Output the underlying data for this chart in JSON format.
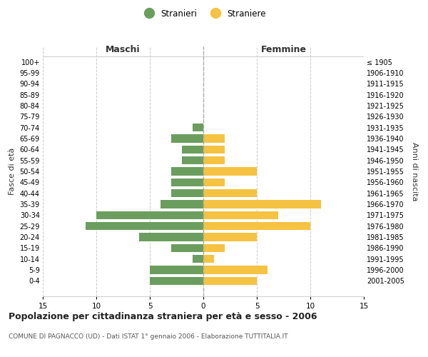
{
  "age_groups": [
    "0-4",
    "5-9",
    "10-14",
    "15-19",
    "20-24",
    "25-29",
    "30-34",
    "35-39",
    "40-44",
    "45-49",
    "50-54",
    "55-59",
    "60-64",
    "65-69",
    "70-74",
    "75-79",
    "80-84",
    "85-89",
    "90-94",
    "95-99",
    "100+"
  ],
  "birth_years": [
    "2001-2005",
    "1996-2000",
    "1991-1995",
    "1986-1990",
    "1981-1985",
    "1976-1980",
    "1971-1975",
    "1966-1970",
    "1961-1965",
    "1956-1960",
    "1951-1955",
    "1946-1950",
    "1941-1945",
    "1936-1940",
    "1931-1935",
    "1926-1930",
    "1921-1925",
    "1916-1920",
    "1911-1915",
    "1906-1910",
    "≤ 1905"
  ],
  "maschi": [
    5,
    5,
    1,
    3,
    6,
    11,
    10,
    4,
    3,
    3,
    3,
    2,
    2,
    3,
    1,
    0,
    0,
    0,
    0,
    0,
    0
  ],
  "femmine": [
    5,
    6,
    1,
    2,
    5,
    10,
    7,
    11,
    5,
    2,
    5,
    2,
    2,
    2,
    0,
    0,
    0,
    0,
    0,
    0,
    0
  ],
  "color_maschi": "#6b9e5e",
  "color_femmine": "#f5c242",
  "title": "Popolazione per cittadinanza straniera per età e sesso - 2006",
  "subtitle": "COMUNE DI PAGNACCO (UD) - Dati ISTAT 1° gennaio 2006 - Elaborazione TUTTITALIA.IT",
  "xlabel_left": "Maschi",
  "xlabel_right": "Femmine",
  "ylabel_left": "Fasce di età",
  "ylabel_right": "Anni di nascita",
  "legend_maschi": "Stranieri",
  "legend_femmine": "Straniere",
  "xlim": 15,
  "background_color": "#ffffff",
  "grid_color": "#cccccc",
  "figsize": [
    6.0,
    5.0
  ],
  "dpi": 100
}
